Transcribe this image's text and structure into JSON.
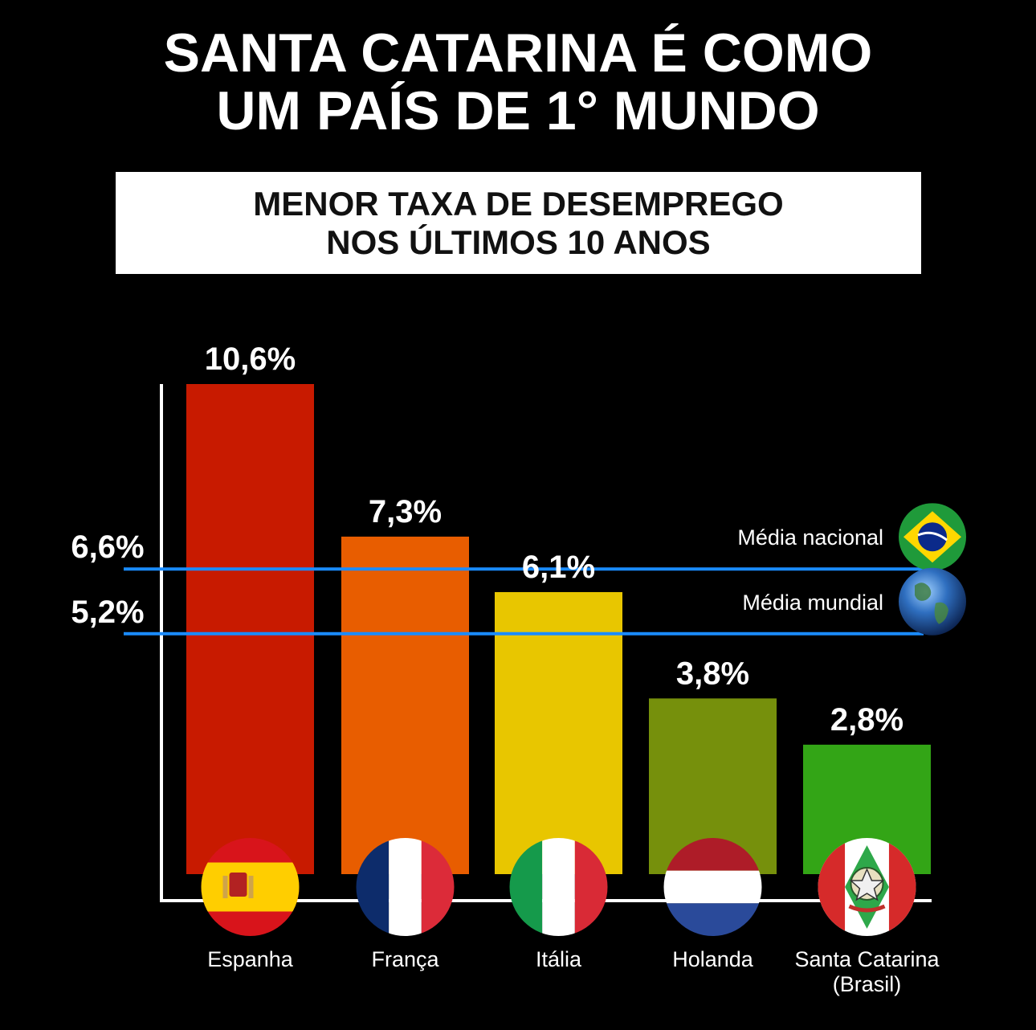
{
  "title": {
    "line1": "SANTA CATARINA É COMO",
    "line2": "UM PAÍS DE 1° MUNDO"
  },
  "subtitle": {
    "line1": "MENOR TAXA DE DESEMPREGO",
    "line2": "NOS ÚLTIMOS 10 ANOS"
  },
  "chart_data": {
    "type": "bar",
    "categories": [
      "Espanha",
      "França",
      "Itália",
      "Holanda",
      "Santa Catarina\n(Brasil)"
    ],
    "values": [
      10.6,
      7.3,
      6.1,
      3.8,
      2.8
    ],
    "value_labels": [
      "10,6%",
      "7,3%",
      "6,1%",
      "3,8%",
      "2,8%"
    ],
    "bar_colors": [
      "#c81a00",
      "#e85d00",
      "#e8c600",
      "#76900c",
      "#33a516"
    ],
    "flag_icons": [
      "spain-flag-icon",
      "france-flag-icon",
      "italy-flag-icon",
      "netherlands-flag-icon",
      "santa-catarina-flag-icon"
    ],
    "reference_lines": [
      {
        "label": "Média nacional",
        "value": 6.6,
        "value_label": "6,6%",
        "icon": "brazil-flag-icon",
        "color": "#1a8cff"
      },
      {
        "label": "Média mundial",
        "value": 5.2,
        "value_label": "5,2%",
        "icon": "globe-icon",
        "color": "#1a8cff"
      }
    ],
    "ylim": [
      0,
      10.6
    ],
    "grid": false,
    "xlabel": "",
    "ylabel": ""
  }
}
